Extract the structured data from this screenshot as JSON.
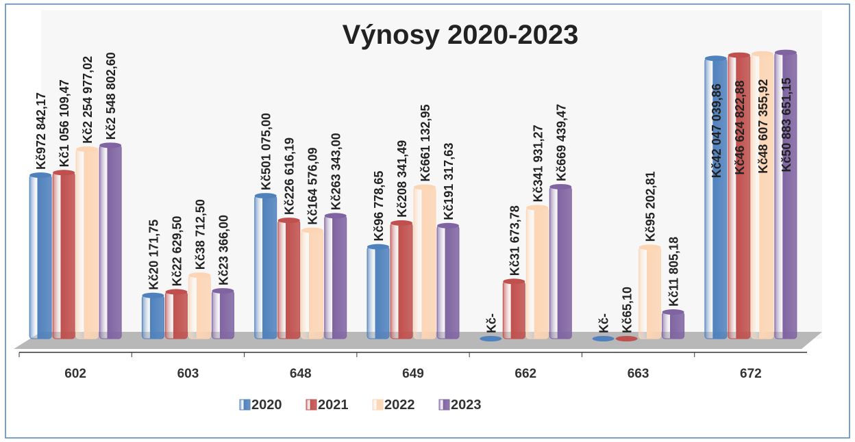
{
  "chart_data": {
    "type": "bar",
    "title": "Výnosy 2020-2023",
    "log_scale": true,
    "ylim": [
      5000,
      100000000
    ],
    "categories": [
      "602",
      "603",
      "648",
      "649",
      "662",
      "663",
      "672"
    ],
    "legend": "bottom",
    "series": [
      {
        "name": "2020",
        "color": "#4f81bd",
        "values": [
          972842.17,
          20171.75,
          501075.0,
          96778.65,
          0,
          0,
          42047039.86
        ],
        "value_labels": [
          "Kč972 842,17",
          "Kč20 171,75",
          "Kč501 075,00",
          "Kč96 778,65",
          "Kč-",
          "Kč-",
          "Kč42 047 039,86"
        ]
      },
      {
        "name": "2021",
        "color": "#c0504d",
        "values": [
          1056109.47,
          22629.5,
          226616.19,
          208341.49,
          31673.78,
          65.1,
          46624822.88
        ],
        "value_labels": [
          "Kč1 056 109,47",
          "Kč22 629,50",
          "Kč226 616,19",
          "Kč208 341,49",
          "Kč31 673,78",
          "Kč65,10",
          "Kč46 624 822,88"
        ]
      },
      {
        "name": "2022",
        "color": "#fcd5b5",
        "values": [
          2254977.02,
          38712.5,
          164576.09,
          661132.95,
          341931.27,
          95202.81,
          48607355.92
        ],
        "value_labels": [
          "Kč2 254 977,02",
          "Kč38 712,50",
          "Kč164 576,09",
          "Kč661 132,95",
          "Kč341 931,27",
          "Kč95 202,81",
          "Kč48 607 355,92"
        ]
      },
      {
        "name": "2023",
        "color": "#8064a2",
        "values": [
          2548802.6,
          23366.0,
          263343.0,
          191317.63,
          669439.47,
          11805.18,
          50883651.15
        ],
        "value_labels": [
          "Kč2 548 802,60",
          "Kč23 366,00",
          "Kč263 343,00",
          "Kč191 317,63",
          "Kč669 439,47",
          "Kč11 805,18",
          "Kč50 883 651,15"
        ]
      }
    ]
  }
}
